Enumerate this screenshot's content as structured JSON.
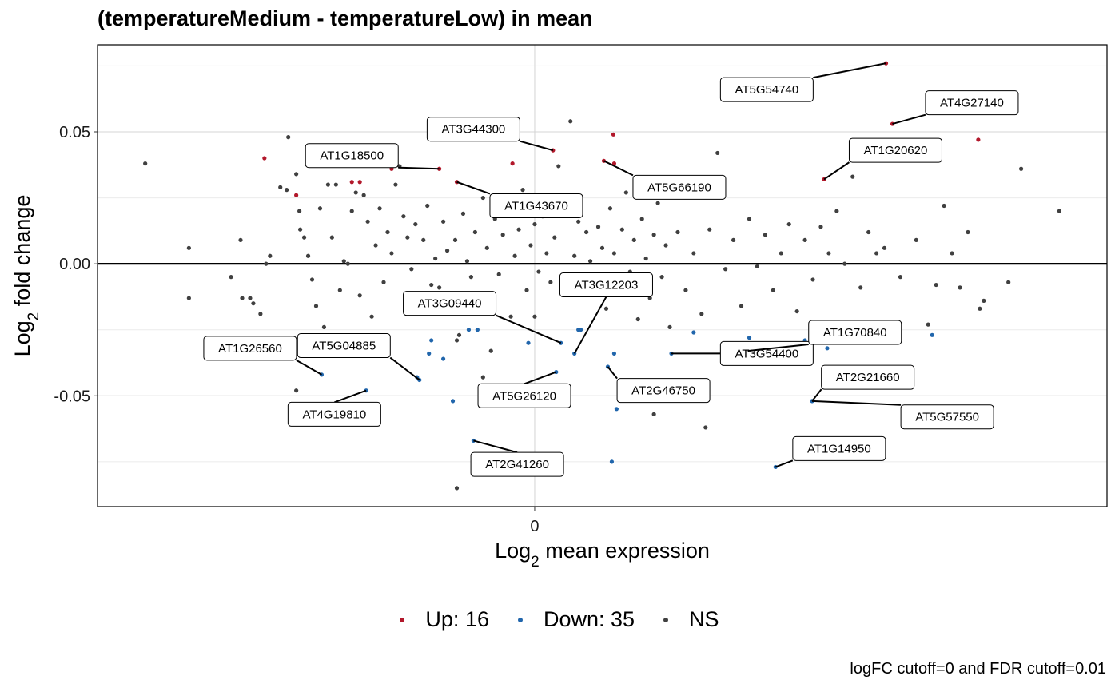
{
  "chart_data": {
    "type": "scatter",
    "title": "(temperatureMedium - temperatureLow) in mean",
    "xlabel": "Log2 mean expression",
    "ylabel": "Log2 fold change",
    "x_ticks": [
      "0"
    ],
    "y_ticks": [
      "0.05",
      "0.00",
      "-0.05"
    ],
    "xlim": [
      -5.5,
      7.2
    ],
    "ylim": [
      -0.092,
      0.083
    ],
    "grid": true,
    "legend_placement": "bottom",
    "colors": {
      "up": "#b2182b",
      "down": "#2166ac",
      "ns": "#404040"
    },
    "legend": [
      {
        "key": "up",
        "label": "Up: 16"
      },
      {
        "key": "down",
        "label": "Down: 35"
      },
      {
        "key": "ns",
        "label": "NS"
      }
    ],
    "caption": "logFC cutoff=0 and FDR cutoff=0.01",
    "series": [
      {
        "key": "up",
        "points": [
          [
            -3.4,
            0.04
          ],
          [
            -3.0,
            0.026
          ],
          [
            -2.3,
            0.031
          ],
          [
            -2.2,
            0.031
          ],
          [
            -1.8,
            0.036
          ],
          [
            -1.2,
            0.036
          ],
          [
            -0.98,
            0.031
          ],
          [
            -0.28,
            0.038
          ],
          [
            0.23,
            0.043
          ],
          [
            0.87,
            0.039
          ],
          [
            0.99,
            0.049
          ],
          [
            3.64,
            0.032
          ],
          [
            4.42,
            0.076
          ],
          [
            4.5,
            0.053
          ],
          [
            5.58,
            0.047
          ],
          [
            1.0,
            0.038
          ]
        ]
      },
      {
        "key": "down",
        "points": [
          [
            -2.68,
            -0.042
          ],
          [
            -2.12,
            -0.048
          ],
          [
            -1.48,
            -0.043
          ],
          [
            -1.45,
            -0.044
          ],
          [
            -1.33,
            -0.034
          ],
          [
            -1.3,
            -0.029
          ],
          [
            -1.15,
            -0.036
          ],
          [
            -1.03,
            -0.052
          ],
          [
            -0.83,
            -0.025
          ],
          [
            -0.77,
            -0.067
          ],
          [
            -0.08,
            -0.03
          ],
          [
            0.33,
            -0.03
          ],
          [
            0.5,
            -0.034
          ],
          [
            0.55,
            -0.025
          ],
          [
            0.27,
            -0.041
          ],
          [
            0.92,
            -0.039
          ],
          [
            0.97,
            -0.075
          ],
          [
            1.0,
            -0.034
          ],
          [
            1.03,
            -0.055
          ],
          [
            1.72,
            -0.034
          ],
          [
            2.68,
            -0.033
          ],
          [
            2.7,
            -0.028
          ],
          [
            3.03,
            -0.077
          ],
          [
            3.28,
            -0.033
          ],
          [
            3.49,
            -0.052
          ],
          [
            3.4,
            -0.029
          ],
          [
            3.5,
            -0.03
          ],
          [
            3.6,
            -0.029
          ],
          [
            3.68,
            -0.032
          ],
          [
            4.06,
            -0.029
          ],
          [
            4.25,
            -0.028
          ],
          [
            5.0,
            -0.027
          ],
          [
            0.58,
            -0.025
          ],
          [
            -0.72,
            -0.025
          ],
          [
            2.0,
            -0.026
          ]
        ]
      },
      {
        "key": "ns",
        "points": [
          [
            -4.9,
            0.038
          ],
          [
            -4.35,
            0.006
          ],
          [
            -4.35,
            -0.013
          ],
          [
            -3.82,
            -0.005
          ],
          [
            -3.7,
            0.009
          ],
          [
            -3.68,
            -0.013
          ],
          [
            -3.58,
            -0.013
          ],
          [
            -3.54,
            -0.015
          ],
          [
            -3.45,
            -0.019
          ],
          [
            -3.38,
            0.0
          ],
          [
            -3.33,
            0.003
          ],
          [
            -3.2,
            0.029
          ],
          [
            -3.12,
            0.028
          ],
          [
            -3.1,
            0.048
          ],
          [
            -3.0,
            0.034
          ],
          [
            -2.96,
            0.02
          ],
          [
            -2.95,
            0.013
          ],
          [
            -2.9,
            0.01
          ],
          [
            -2.85,
            0.003
          ],
          [
            -2.8,
            -0.006
          ],
          [
            -2.75,
            -0.016
          ],
          [
            -2.7,
            0.021
          ],
          [
            -2.65,
            -0.024
          ],
          [
            -2.6,
            0.03
          ],
          [
            -2.55,
            0.01
          ],
          [
            -2.5,
            0.03
          ],
          [
            -2.45,
            -0.01
          ],
          [
            -2.4,
            0.001
          ],
          [
            -2.35,
            0.0
          ],
          [
            -2.3,
            0.02
          ],
          [
            -2.25,
            0.027
          ],
          [
            -2.2,
            -0.012
          ],
          [
            -2.15,
            0.026
          ],
          [
            -2.1,
            0.016
          ],
          [
            -2.05,
            -0.02
          ],
          [
            -2.0,
            0.007
          ],
          [
            -1.95,
            0.021
          ],
          [
            -1.9,
            -0.007
          ],
          [
            -1.85,
            0.012
          ],
          [
            -1.8,
            0.004
          ],
          [
            -1.75,
            0.03
          ],
          [
            -1.7,
            0.037
          ],
          [
            -1.65,
            0.018
          ],
          [
            -1.6,
            0.01
          ],
          [
            -1.55,
            -0.002
          ],
          [
            -1.5,
            0.015
          ],
          [
            -1.45,
            -0.017
          ],
          [
            -1.4,
            0.009
          ],
          [
            -1.35,
            0.022
          ],
          [
            -1.3,
            -0.008
          ],
          [
            -1.25,
            0.002
          ],
          [
            -1.2,
            -0.009
          ],
          [
            -1.15,
            0.016
          ],
          [
            -1.1,
            0.005
          ],
          [
            -1.05,
            -0.014
          ],
          [
            -1.0,
            0.009
          ],
          [
            -0.95,
            -0.027
          ],
          [
            -0.9,
            0.019
          ],
          [
            -0.85,
            0.001
          ],
          [
            -0.8,
            -0.005
          ],
          [
            -0.75,
            0.012
          ],
          [
            -0.7,
            -0.012
          ],
          [
            -0.65,
            0.025
          ],
          [
            -0.6,
            0.006
          ],
          [
            -0.55,
            -0.016
          ],
          [
            -0.5,
            0.017
          ],
          [
            -0.45,
            -0.004
          ],
          [
            -0.4,
            0.011
          ],
          [
            -0.35,
            0.024
          ],
          [
            -0.3,
            -0.02
          ],
          [
            -0.25,
            0.003
          ],
          [
            -0.2,
            0.013
          ],
          [
            -0.15,
            0.028
          ],
          [
            -0.1,
            -0.01
          ],
          [
            -0.05,
            0.007
          ],
          [
            0.0,
            0.015
          ],
          [
            0.05,
            -0.003
          ],
          [
            0.1,
            0.018
          ],
          [
            0.15,
            0.004
          ],
          [
            0.2,
            -0.007
          ],
          [
            0.25,
            0.01
          ],
          [
            0.3,
            0.037
          ],
          [
            0.35,
            0.02
          ],
          [
            0.4,
            -0.011
          ],
          [
            0.45,
            0.054
          ],
          [
            0.5,
            0.003
          ],
          [
            0.55,
            0.016
          ],
          [
            0.6,
            -0.005
          ],
          [
            0.65,
            0.012
          ],
          [
            0.7,
            0.001
          ],
          [
            0.75,
            -0.009
          ],
          [
            0.8,
            0.014
          ],
          [
            0.85,
            0.006
          ],
          [
            0.9,
            -0.017
          ],
          [
            0.95,
            0.021
          ],
          [
            1.0,
            0.004
          ],
          [
            1.05,
            -0.011
          ],
          [
            1.1,
            0.013
          ],
          [
            1.15,
            0.027
          ],
          [
            1.2,
            -0.003
          ],
          [
            1.25,
            0.009
          ],
          [
            1.3,
            -0.021
          ],
          [
            1.35,
            0.017
          ],
          [
            1.4,
            0.002
          ],
          [
            1.45,
            -0.013
          ],
          [
            1.5,
            0.011
          ],
          [
            1.55,
            0.023
          ],
          [
            1.6,
            -0.005
          ],
          [
            1.65,
            0.007
          ],
          [
            1.7,
            -0.024
          ],
          [
            1.8,
            0.012
          ],
          [
            1.9,
            -0.01
          ],
          [
            2.0,
            0.004
          ],
          [
            2.1,
            -0.019
          ],
          [
            2.2,
            0.013
          ],
          [
            2.3,
            0.042
          ],
          [
            2.4,
            -0.002
          ],
          [
            2.5,
            0.009
          ],
          [
            2.6,
            -0.016
          ],
          [
            2.7,
            0.017
          ],
          [
            2.8,
            -0.001
          ],
          [
            2.9,
            0.011
          ],
          [
            3.0,
            -0.01
          ],
          [
            3.1,
            0.004
          ],
          [
            3.2,
            0.015
          ],
          [
            3.3,
            -0.018
          ],
          [
            3.4,
            0.009
          ],
          [
            3.5,
            -0.006
          ],
          [
            3.6,
            0.014
          ],
          [
            3.7,
            0.004
          ],
          [
            3.8,
            0.02
          ],
          [
            3.9,
            0.0
          ],
          [
            4.0,
            0.033
          ],
          [
            4.1,
            -0.009
          ],
          [
            4.2,
            0.012
          ],
          [
            4.3,
            0.004
          ],
          [
            4.4,
            0.006
          ],
          [
            4.6,
            -0.005
          ],
          [
            4.8,
            0.009
          ],
          [
            4.95,
            -0.023
          ],
          [
            5.05,
            -0.008
          ],
          [
            5.15,
            0.022
          ],
          [
            5.25,
            0.004
          ],
          [
            5.35,
            -0.009
          ],
          [
            5.45,
            0.012
          ],
          [
            5.6,
            -0.017
          ],
          [
            5.65,
            -0.014
          ],
          [
            5.96,
            -0.007
          ],
          [
            6.12,
            0.036
          ],
          [
            6.6,
            0.02
          ],
          [
            -0.98,
            -0.029
          ],
          [
            -0.65,
            -0.043
          ],
          [
            1.5,
            -0.057
          ],
          [
            2.15,
            -0.062
          ],
          [
            -0.98,
            -0.085
          ],
          [
            -3.0,
            -0.048
          ],
          [
            0.0,
            -0.02
          ],
          [
            -0.55,
            -0.033
          ]
        ]
      }
    ],
    "labels": [
      {
        "text": "AT5G54740",
        "x": 4.42,
        "y": 0.076
      },
      {
        "text": "AT4G27140",
        "x": 4.5,
        "y": 0.053
      },
      {
        "text": "AT3G44300",
        "x": 0.23,
        "y": 0.043
      },
      {
        "text": "AT1G18500",
        "x": -1.2,
        "y": 0.036
      },
      {
        "text": "AT1G20620",
        "x": 3.64,
        "y": 0.032
      },
      {
        "text": "AT5G66190",
        "x": 0.87,
        "y": 0.039
      },
      {
        "text": "AT1G43670",
        "x": -0.98,
        "y": 0.031
      },
      {
        "text": "AT3G12203",
        "x": 0.5,
        "y": -0.034
      },
      {
        "text": "AT3G09440",
        "x": 0.33,
        "y": -0.03
      },
      {
        "text": "AT3G54400",
        "x": 1.72,
        "y": -0.034
      },
      {
        "text": "AT1G70840",
        "x": 2.68,
        "y": -0.033
      },
      {
        "text": "AT1G26560",
        "x": -2.68,
        "y": -0.042
      },
      {
        "text": "AT5G04885",
        "x": -1.45,
        "y": -0.044
      },
      {
        "text": "AT2G21660",
        "x": 3.49,
        "y": -0.052
      },
      {
        "text": "AT4G19810",
        "x": -2.12,
        "y": -0.048
      },
      {
        "text": "AT5G26120",
        "x": 0.27,
        "y": -0.041
      },
      {
        "text": "AT2G46750",
        "x": 0.92,
        "y": -0.039
      },
      {
        "text": "AT5G57550",
        "x": 3.49,
        "y": -0.052
      },
      {
        "text": "AT1G14950",
        "x": 3.03,
        "y": -0.077
      },
      {
        "text": "AT2G41260",
        "x": -0.77,
        "y": -0.067
      }
    ]
  }
}
